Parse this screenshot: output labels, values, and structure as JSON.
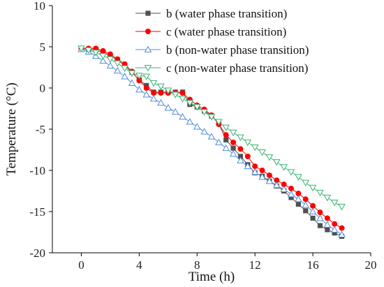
{
  "chart_data": {
    "type": "line",
    "xlabel": "Time (h)",
    "ylabel": "Temperature (°C)",
    "xlim": [
      -2,
      20
    ],
    "ylim": [
      -20,
      10
    ],
    "xticks": [
      0,
      4,
      8,
      12,
      16,
      20
    ],
    "yticks": [
      10,
      5,
      0,
      -5,
      -10,
      -15,
      -20
    ],
    "grid": false,
    "legend_position": "top-right",
    "series": [
      {
        "name": "b (water phase transition)",
        "color": "#505050",
        "marker": "square",
        "x": [
          0,
          0.5,
          1,
          1.5,
          2,
          2.5,
          3,
          3.5,
          4,
          4.5,
          5,
          5.5,
          6,
          6.5,
          7,
          7.5,
          8,
          8.5,
          9,
          9.5,
          10,
          10.5,
          11,
          11.5,
          12,
          12.5,
          13,
          13.5,
          14,
          14.5,
          15,
          15.5,
          16,
          16.5,
          17,
          17.5,
          18
        ],
        "y": [
          4.7,
          4.7,
          4.6,
          4.3,
          3.9,
          3.4,
          2.7,
          1.9,
          1.0,
          0.3,
          -0.5,
          -0.5,
          -0.5,
          -0.5,
          -0.5,
          -2.0,
          -2.3,
          -2.8,
          -3.4,
          -4.3,
          -6.3,
          -7.3,
          -8.3,
          -9.3,
          -10.3,
          -10.7,
          -11.3,
          -11.9,
          -12.5,
          -13.3,
          -14.1,
          -14.9,
          -15.8,
          -16.7,
          -17.2,
          -17.6,
          -18.0
        ]
      },
      {
        "name": "c (water phase transition)",
        "color": "#ff0000",
        "marker": "circle",
        "x": [
          0,
          0.5,
          1,
          1.5,
          2,
          2.5,
          3,
          3.5,
          4,
          4.5,
          5,
          5.5,
          6,
          6.5,
          7,
          7.5,
          8,
          8.5,
          9,
          9.5,
          10,
          10.5,
          11,
          11.5,
          12,
          12.5,
          13,
          13.5,
          14,
          14.5,
          15,
          15.5,
          16,
          16.5,
          17,
          17.5,
          18
        ],
        "y": [
          4.8,
          4.8,
          4.8,
          4.5,
          4.1,
          3.5,
          2.9,
          2.0,
          0.9,
          0.0,
          -0.6,
          -0.6,
          -0.6,
          -0.6,
          -0.6,
          -1.4,
          -2.1,
          -2.6,
          -3.3,
          -4.4,
          -5.7,
          -6.6,
          -7.4,
          -8.3,
          -9.5,
          -10.0,
          -10.6,
          -11.2,
          -11.7,
          -12.2,
          -12.8,
          -13.5,
          -14.3,
          -15.1,
          -15.8,
          -16.5,
          -17.0
        ]
      },
      {
        "name": "b (non-water phase transition)",
        "color": "#4f8fd9",
        "marker": "triangle-up",
        "x": [
          0,
          0.5,
          1,
          1.5,
          2,
          2.5,
          3,
          3.5,
          4,
          4.5,
          5,
          5.5,
          6,
          6.5,
          7,
          7.5,
          8,
          8.5,
          9,
          9.5,
          10,
          10.5,
          11,
          11.5,
          12,
          12.5,
          13,
          13.5,
          14,
          14.5,
          15,
          15.5,
          16,
          16.5,
          17,
          17.5,
          18
        ],
        "y": [
          4.7,
          4.4,
          3.9,
          3.3,
          2.7,
          2.1,
          1.4,
          0.6,
          -0.2,
          -0.8,
          -1.3,
          -1.8,
          -2.4,
          -2.9,
          -3.5,
          -4.1,
          -4.7,
          -5.3,
          -5.9,
          -6.6,
          -7.3,
          -8.0,
          -8.8,
          -9.5,
          -10.2,
          -10.8,
          -11.3,
          -11.8,
          -12.3,
          -12.9,
          -13.5,
          -14.2,
          -15.0,
          -15.8,
          -16.6,
          -17.2,
          -17.8
        ]
      },
      {
        "name": "c (non-water phase transition)",
        "color": "#3cb371",
        "marker": "triangle-down",
        "x": [
          0,
          0.5,
          1,
          1.5,
          2,
          2.5,
          3,
          3.5,
          4,
          4.5,
          5,
          5.5,
          6,
          6.5,
          7,
          7.5,
          8,
          8.5,
          9,
          9.5,
          10,
          10.5,
          11,
          11.5,
          12,
          12.5,
          13,
          13.5,
          14,
          14.5,
          15,
          15.5,
          16,
          16.5,
          17,
          17.5,
          18
        ],
        "y": [
          4.8,
          4.6,
          4.3,
          3.9,
          3.5,
          3.0,
          2.4,
          1.8,
          1.5,
          1.4,
          0.6,
          0.2,
          -0.3,
          -0.8,
          -1.3,
          -1.8,
          -2.3,
          -2.9,
          -3.5,
          -4.1,
          -4.8,
          -5.4,
          -6.0,
          -6.6,
          -7.2,
          -7.8,
          -8.4,
          -9.0,
          -9.6,
          -10.2,
          -10.8,
          -11.5,
          -12.1,
          -12.7,
          -13.3,
          -13.9,
          -14.4
        ]
      }
    ]
  }
}
